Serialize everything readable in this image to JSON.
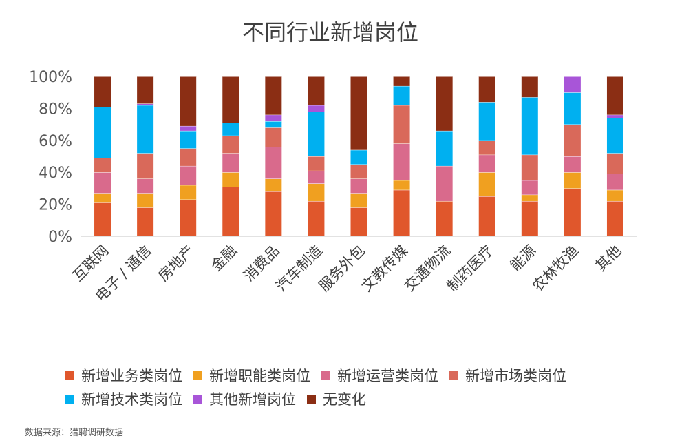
{
  "chart_data": {
    "type": "bar",
    "stacked": true,
    "title": "不同行业新增岗位",
    "categories": [
      "互联网",
      "电子 / 通信",
      "房地产",
      "金融",
      "消费品",
      "汽车制造",
      "服务外包",
      "文教传媒",
      "交通物流",
      "制药医疗",
      "能源",
      "农林牧渔",
      "其他"
    ],
    "ylim": [
      0,
      100
    ],
    "yticks": [
      "0%",
      "20%",
      "40%",
      "60%",
      "80%",
      "100%"
    ],
    "grid": false,
    "legend_position": "bottom",
    "series": [
      {
        "name": "新增业务类岗位",
        "color": "#E0572C",
        "values": [
          21,
          18,
          23,
          31,
          28,
          22,
          18,
          29,
          22,
          25,
          22,
          30,
          22
        ]
      },
      {
        "name": "新增职能类岗位",
        "color": "#F0A020",
        "values": [
          6,
          9,
          9,
          9,
          8,
          11,
          9,
          6,
          0,
          15,
          4,
          10,
          7
        ]
      },
      {
        "name": "新增运营类岗位",
        "color": "#D96A8C",
        "values": [
          13,
          9,
          12,
          12,
          20,
          8,
          9,
          23,
          22,
          11,
          9,
          10,
          10
        ]
      },
      {
        "name": "新增市场类岗位",
        "color": "#D9695A",
        "values": [
          9,
          16,
          11,
          11,
          12,
          9,
          9,
          24,
          0,
          9,
          16,
          20,
          13
        ]
      },
      {
        "name": "新增技术类岗位",
        "color": "#00B0F0",
        "values": [
          32,
          30,
          11,
          8,
          4,
          28,
          9,
          12,
          22,
          24,
          36,
          20,
          22
        ]
      },
      {
        "name": "其他新增岗位",
        "color": "#A855D8",
        "values": [
          0,
          1,
          3,
          0,
          4,
          4,
          0,
          0,
          0,
          0,
          0,
          10,
          2
        ]
      },
      {
        "name": "无变化",
        "color": "#8B2E14",
        "values": [
          19,
          17,
          31,
          29,
          24,
          18,
          46,
          6,
          34,
          16,
          13,
          0,
          24
        ]
      }
    ]
  },
  "source": "数据来源：猎聘调研数据"
}
